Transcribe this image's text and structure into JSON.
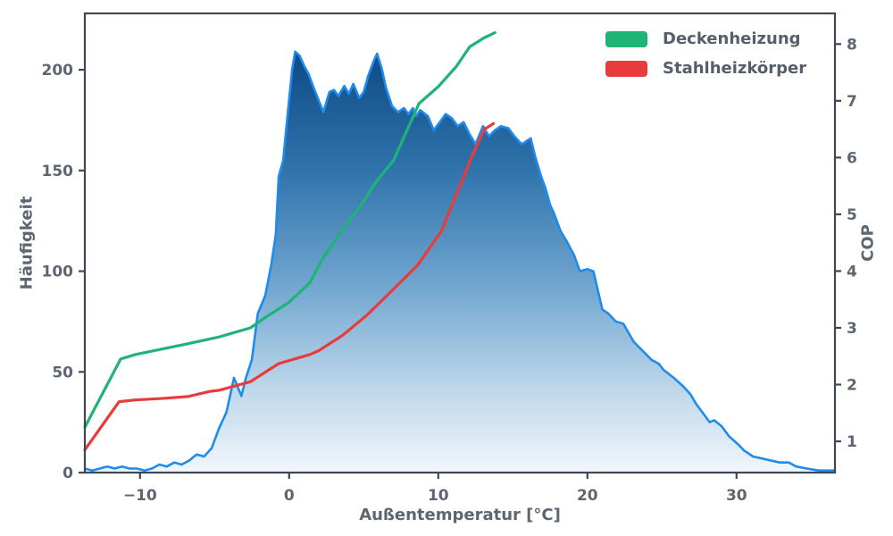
{
  "figure": {
    "background": "#ffffff",
    "axis_color": "#3f4754",
    "text_color": "#5d6670"
  },
  "chart_data": {
    "type": "area",
    "title": "",
    "xlabel": "Außentemperatur [°C]",
    "ylabel_left": "Häufigkeit",
    "ylabel_right": "COP",
    "grid": false,
    "xlim": [
      -13.7,
      36.6
    ],
    "ylim_left": [
      0,
      228
    ],
    "ylim_right": [
      0.45,
      8.54
    ],
    "x_ticks": [
      {
        "v": -10,
        "label": "−10"
      },
      {
        "v": 0,
        "label": "0"
      },
      {
        "v": 10,
        "label": "10"
      },
      {
        "v": 20,
        "label": "20"
      },
      {
        "v": 30,
        "label": "30"
      }
    ],
    "y_ticks_left": [
      {
        "v": 0,
        "label": "0"
      },
      {
        "v": 50,
        "label": "50"
      },
      {
        "v": 100,
        "label": "100"
      },
      {
        "v": 150,
        "label": "150"
      },
      {
        "v": 200,
        "label": "200"
      }
    ],
    "y_ticks_right": [
      {
        "v": 1,
        "label": "1"
      },
      {
        "v": 2,
        "label": "2"
      },
      {
        "v": 3,
        "label": "3"
      },
      {
        "v": 4,
        "label": "4"
      },
      {
        "v": 5,
        "label": "5"
      },
      {
        "v": 6,
        "label": "6"
      },
      {
        "v": 7,
        "label": "7"
      },
      {
        "v": 8,
        "label": "8"
      }
    ],
    "legend": {
      "position": "top-right",
      "frame": false,
      "entries": [
        {
          "label": "Deckenheizung",
          "color": "#1fb377"
        },
        {
          "label": "Stahlheizkörper",
          "color": "#e83c3c"
        }
      ]
    },
    "series": [
      {
        "name": "Häufigkeit",
        "type": "area",
        "axis": "left",
        "line_color": "#1f8ceb",
        "fill_gradient": [
          "#0e4a85",
          "#2f73ab",
          "#6fa5cf",
          "#bdd7ea",
          "#f2f7fc"
        ],
        "points": [
          [
            -13.7,
            2
          ],
          [
            -13.2,
            1
          ],
          [
            -12.7,
            2
          ],
          [
            -12.2,
            3
          ],
          [
            -11.7,
            2
          ],
          [
            -11.2,
            3
          ],
          [
            -10.7,
            2
          ],
          [
            -10.2,
            2
          ],
          [
            -9.7,
            1
          ],
          [
            -9.2,
            2
          ],
          [
            -8.7,
            4
          ],
          [
            -8.2,
            3
          ],
          [
            -7.7,
            5
          ],
          [
            -7.2,
            4
          ],
          [
            -6.7,
            6
          ],
          [
            -6.2,
            9
          ],
          [
            -5.7,
            8
          ],
          [
            -5.2,
            12
          ],
          [
            -4.7,
            22
          ],
          [
            -4.2,
            30
          ],
          [
            -3.7,
            47
          ],
          [
            -3.2,
            38
          ],
          [
            -2.9,
            47
          ],
          [
            -2.5,
            56
          ],
          [
            -2.1,
            79
          ],
          [
            -1.6,
            88
          ],
          [
            -1.2,
            103
          ],
          [
            -0.9,
            118
          ],
          [
            -0.7,
            147
          ],
          [
            -0.4,
            155
          ],
          [
            -0.1,
            178
          ],
          [
            0.2,
            200
          ],
          [
            0.4,
            209
          ],
          [
            0.7,
            207
          ],
          [
            1,
            202
          ],
          [
            1.3,
            198
          ],
          [
            1.7,
            190
          ],
          [
            2.3,
            179
          ],
          [
            2.7,
            189
          ],
          [
            3,
            190
          ],
          [
            3.3,
            187
          ],
          [
            3.7,
            192
          ],
          [
            4,
            188
          ],
          [
            4.3,
            193
          ],
          [
            4.7,
            186
          ],
          [
            5,
            189
          ],
          [
            5.3,
            197
          ],
          [
            5.7,
            205
          ],
          [
            5.9,
            208
          ],
          [
            6.2,
            201
          ],
          [
            6.5,
            191
          ],
          [
            6.9,
            182
          ],
          [
            7.3,
            179
          ],
          [
            7.7,
            181
          ],
          [
            8,
            178
          ],
          [
            8.3,
            181
          ],
          [
            8.5,
            177
          ],
          [
            8.8,
            180
          ],
          [
            9.3,
            177
          ],
          [
            9.7,
            170
          ],
          [
            10.1,
            174
          ],
          [
            10.5,
            178
          ],
          [
            10.9,
            176
          ],
          [
            11.3,
            172
          ],
          [
            11.7,
            174
          ],
          [
            12.1,
            168
          ],
          [
            12.5,
            163
          ],
          [
            13,
            172
          ],
          [
            13.4,
            167
          ],
          [
            13.8,
            170
          ],
          [
            14.2,
            172
          ],
          [
            14.7,
            171
          ],
          [
            15.1,
            167
          ],
          [
            15.6,
            163
          ],
          [
            16,
            165
          ],
          [
            16.2,
            166
          ],
          [
            16.5,
            157
          ],
          [
            16.9,
            147
          ],
          [
            17.2,
            141
          ],
          [
            17.5,
            133
          ],
          [
            17.8,
            128
          ],
          [
            18.2,
            120
          ],
          [
            18.6,
            115
          ],
          [
            19.1,
            108
          ],
          [
            19.5,
            100
          ],
          [
            20,
            101
          ],
          [
            20.4,
            100
          ],
          [
            21,
            81
          ],
          [
            21.4,
            79
          ],
          [
            21.9,
            75
          ],
          [
            22.4,
            74
          ],
          [
            23.1,
            65
          ],
          [
            23.5,
            62
          ],
          [
            24.3,
            56
          ],
          [
            24.8,
            54
          ],
          [
            25.1,
            51
          ],
          [
            25.8,
            47
          ],
          [
            26.4,
            43
          ],
          [
            26.9,
            39
          ],
          [
            27.3,
            34
          ],
          [
            27.7,
            30
          ],
          [
            28.2,
            25
          ],
          [
            28.5,
            26
          ],
          [
            29,
            23
          ],
          [
            29.5,
            18
          ],
          [
            30.1,
            14
          ],
          [
            30.5,
            11
          ],
          [
            31.1,
            8
          ],
          [
            31.7,
            7
          ],
          [
            32.3,
            6
          ],
          [
            32.9,
            5
          ],
          [
            33.5,
            5
          ],
          [
            34,
            3
          ],
          [
            34.7,
            2
          ],
          [
            35.5,
            1
          ],
          [
            36.6,
            1
          ]
        ]
      },
      {
        "name": "Deckenheizung",
        "type": "line",
        "axis": "right",
        "color": "#1fb377",
        "points": [
          [
            -13.7,
            1.25
          ],
          [
            -11.3,
            2.45
          ],
          [
            -10.3,
            2.53
          ],
          [
            -8.3,
            2.64
          ],
          [
            -6.8,
            2.72
          ],
          [
            -4.7,
            2.84
          ],
          [
            -2.6,
            3.0
          ],
          [
            -1.5,
            3.2
          ],
          [
            0,
            3.45
          ],
          [
            1.4,
            3.8
          ],
          [
            2.2,
            4.2
          ],
          [
            3.5,
            4.7
          ],
          [
            4.8,
            5.15
          ],
          [
            5.9,
            5.6
          ],
          [
            7,
            5.95
          ],
          [
            8.7,
            6.95
          ],
          [
            10,
            7.25
          ],
          [
            11.2,
            7.6
          ],
          [
            12.1,
            7.95
          ],
          [
            13,
            8.1
          ],
          [
            13.8,
            8.2
          ]
        ]
      },
      {
        "name": "Stahlheizkörper",
        "type": "line",
        "axis": "right",
        "color": "#e83c3c",
        "points": [
          [
            -13.7,
            0.85
          ],
          [
            -11.4,
            1.7
          ],
          [
            -10.3,
            1.73
          ],
          [
            -8.3,
            1.76
          ],
          [
            -6.8,
            1.79
          ],
          [
            -5.3,
            1.88
          ],
          [
            -4.7,
            1.9
          ],
          [
            -2.6,
            2.05
          ],
          [
            -0.7,
            2.37
          ],
          [
            1.4,
            2.53
          ],
          [
            2,
            2.6
          ],
          [
            3.6,
            2.87
          ],
          [
            5.2,
            3.22
          ],
          [
            6.8,
            3.63
          ],
          [
            8.6,
            4.1
          ],
          [
            10.2,
            4.7
          ],
          [
            11.3,
            5.4
          ],
          [
            12.3,
            6.05
          ],
          [
            13.1,
            6.5
          ],
          [
            13.7,
            6.6
          ]
        ]
      }
    ]
  }
}
